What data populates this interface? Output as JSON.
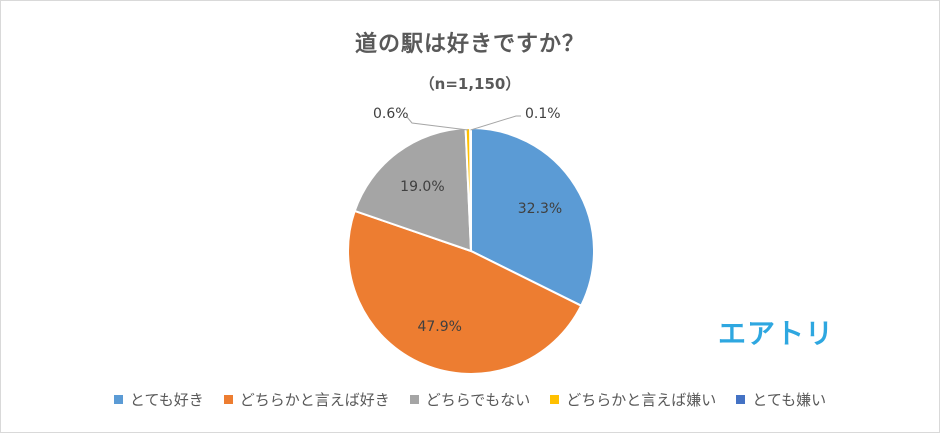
{
  "chart_data": {
    "type": "pie",
    "title": "道の駅は好きですか？",
    "subtitle": "（n=1,150）",
    "categories": [
      "とても好き",
      "どちらかと言えば好き",
      "どちらでもない",
      "どちらかと言えば嫌い",
      "とても嫌い"
    ],
    "values": [
      32.3,
      47.9,
      19.0,
      0.6,
      0.1
    ],
    "labels": [
      "32.3%",
      "47.9%",
      "19.0%",
      "0.6%",
      "0.1%"
    ],
    "colors": [
      "#5b9bd5",
      "#ed7d31",
      "#a5a5a5",
      "#ffc000",
      "#4472c4"
    ],
    "legend_position": "bottom"
  },
  "brand": "エアトリ"
}
